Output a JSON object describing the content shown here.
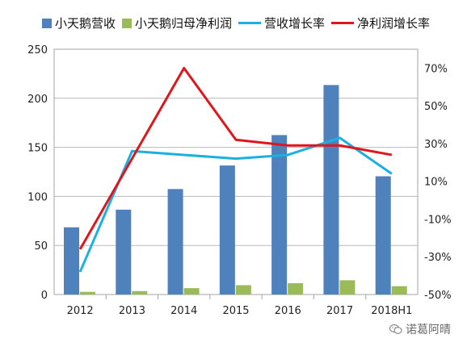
{
  "chart_data": {
    "type": "bar",
    "categories": [
      "2012",
      "2013",
      "2014",
      "2015",
      "2016",
      "2017",
      "2018H1"
    ],
    "series": [
      {
        "name": "小天鹅营收",
        "type": "bar",
        "axis": "left",
        "color": "#4F81BD",
        "values": [
          68.5,
          86.5,
          107.5,
          131.5,
          162.5,
          213.5,
          120.5
        ]
      },
      {
        "name": "小天鹅归母净利润",
        "type": "bar",
        "axis": "left",
        "color": "#9BBB59",
        "values": [
          2.7,
          3.5,
          6.5,
          9.5,
          11.5,
          14.5,
          8.5
        ]
      },
      {
        "name": "营收增长率",
        "type": "line",
        "axis": "right",
        "color": "#1BB0E0",
        "values": [
          -38,
          26,
          24,
          22,
          24,
          33,
          14
        ]
      },
      {
        "name": "净利润增长率",
        "type": "line",
        "axis": "right",
        "color": "#E0161D",
        "values": [
          -26,
          22,
          70,
          32,
          29,
          29,
          24
        ]
      }
    ],
    "y_left": {
      "min": 0,
      "max": 250,
      "ticks": [
        0,
        50,
        100,
        150,
        200,
        250
      ]
    },
    "y_right": {
      "min": -50,
      "max": 80,
      "ticks": [
        -50,
        -30,
        -10,
        10,
        30,
        50,
        70
      ],
      "tick_labels": [
        "-50%",
        "-30%",
        "-10%",
        "10%",
        "30%",
        "50%",
        "70%"
      ]
    },
    "grid": true,
    "legend_position": "top"
  },
  "watermark": {
    "text": "诺葛阿晴",
    "icon": "wechat-icon"
  }
}
